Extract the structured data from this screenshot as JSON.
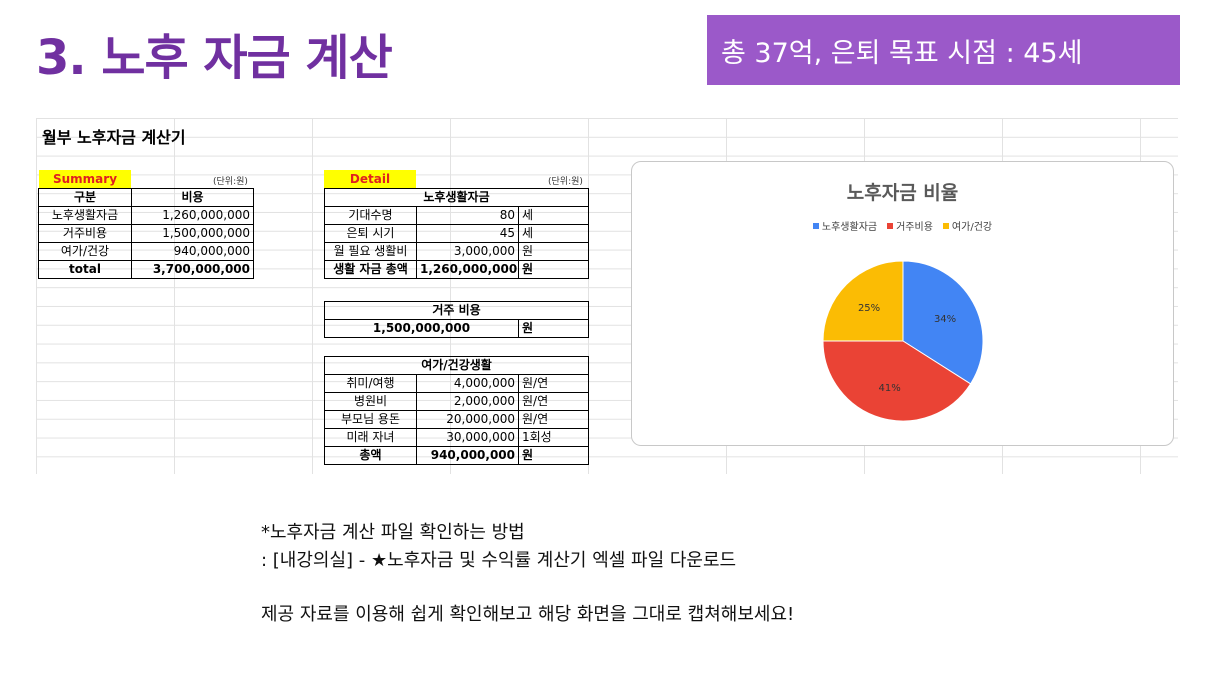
{
  "slide": {
    "title": "3. 노후 자금 계산",
    "goal": "총 37억, 은퇴 목표 시점 : 45세"
  },
  "sheet": {
    "title": "월부 노후자금 계산기",
    "summary": {
      "label": "Summary",
      "unit": "(단위:원)",
      "headers": [
        "구분",
        "비용"
      ],
      "rows": [
        [
          "노후생활자금",
          "1,260,000,000"
        ],
        [
          "거주비용",
          "1,500,000,000"
        ],
        [
          "여가/건강",
          "940,000,000"
        ]
      ],
      "total": [
        "total",
        "3,700,000,000"
      ]
    },
    "detail": {
      "label": "Detail",
      "unit": "(단위:원)",
      "living": {
        "header": "노후생활자금",
        "rows": [
          [
            "기대수명",
            "80",
            "세"
          ],
          [
            "은퇴 시기",
            "45",
            "세"
          ],
          [
            "월 필요 생활비",
            "3,000,000",
            "원"
          ]
        ],
        "total": [
          "생활 자금 총액",
          "1,260,000,000",
          "원"
        ]
      },
      "housing": {
        "header": "거주 비용",
        "value": "1,500,000,000",
        "unit": "원"
      },
      "leisure": {
        "header": "여가/건강생활",
        "rows": [
          [
            "취미/여행",
            "4,000,000",
            "원/연"
          ],
          [
            "병원비",
            "2,000,000",
            "원/연"
          ],
          [
            "부모님 용돈",
            "20,000,000",
            "원/연"
          ],
          [
            "미래 자녀",
            "30,000,000",
            "1회성"
          ]
        ],
        "total": [
          "총액",
          "940,000,000",
          "원"
        ]
      }
    }
  },
  "chart_data": {
    "type": "pie",
    "title": "노후자금 비율",
    "legend_position": "top",
    "categories": [
      "노후생활자금",
      "거주비용",
      "여가/건강"
    ],
    "values": [
      34,
      41,
      25
    ],
    "labels": [
      "34%",
      "41%",
      "25%"
    ],
    "colors": [
      "#4285f4",
      "#ea4335",
      "#fbbc04"
    ]
  },
  "notes": {
    "line1": "*노후자금 계산 파일 확인하는 방법",
    "line2": ": [내강의실] - ★노후자금 및 수익률 계산기 엑셀 파일 다운로드",
    "line3": "제공 자료를 이용해 쉽게 확인해보고 해당 화면을 그대로 캡쳐해보세요!"
  }
}
